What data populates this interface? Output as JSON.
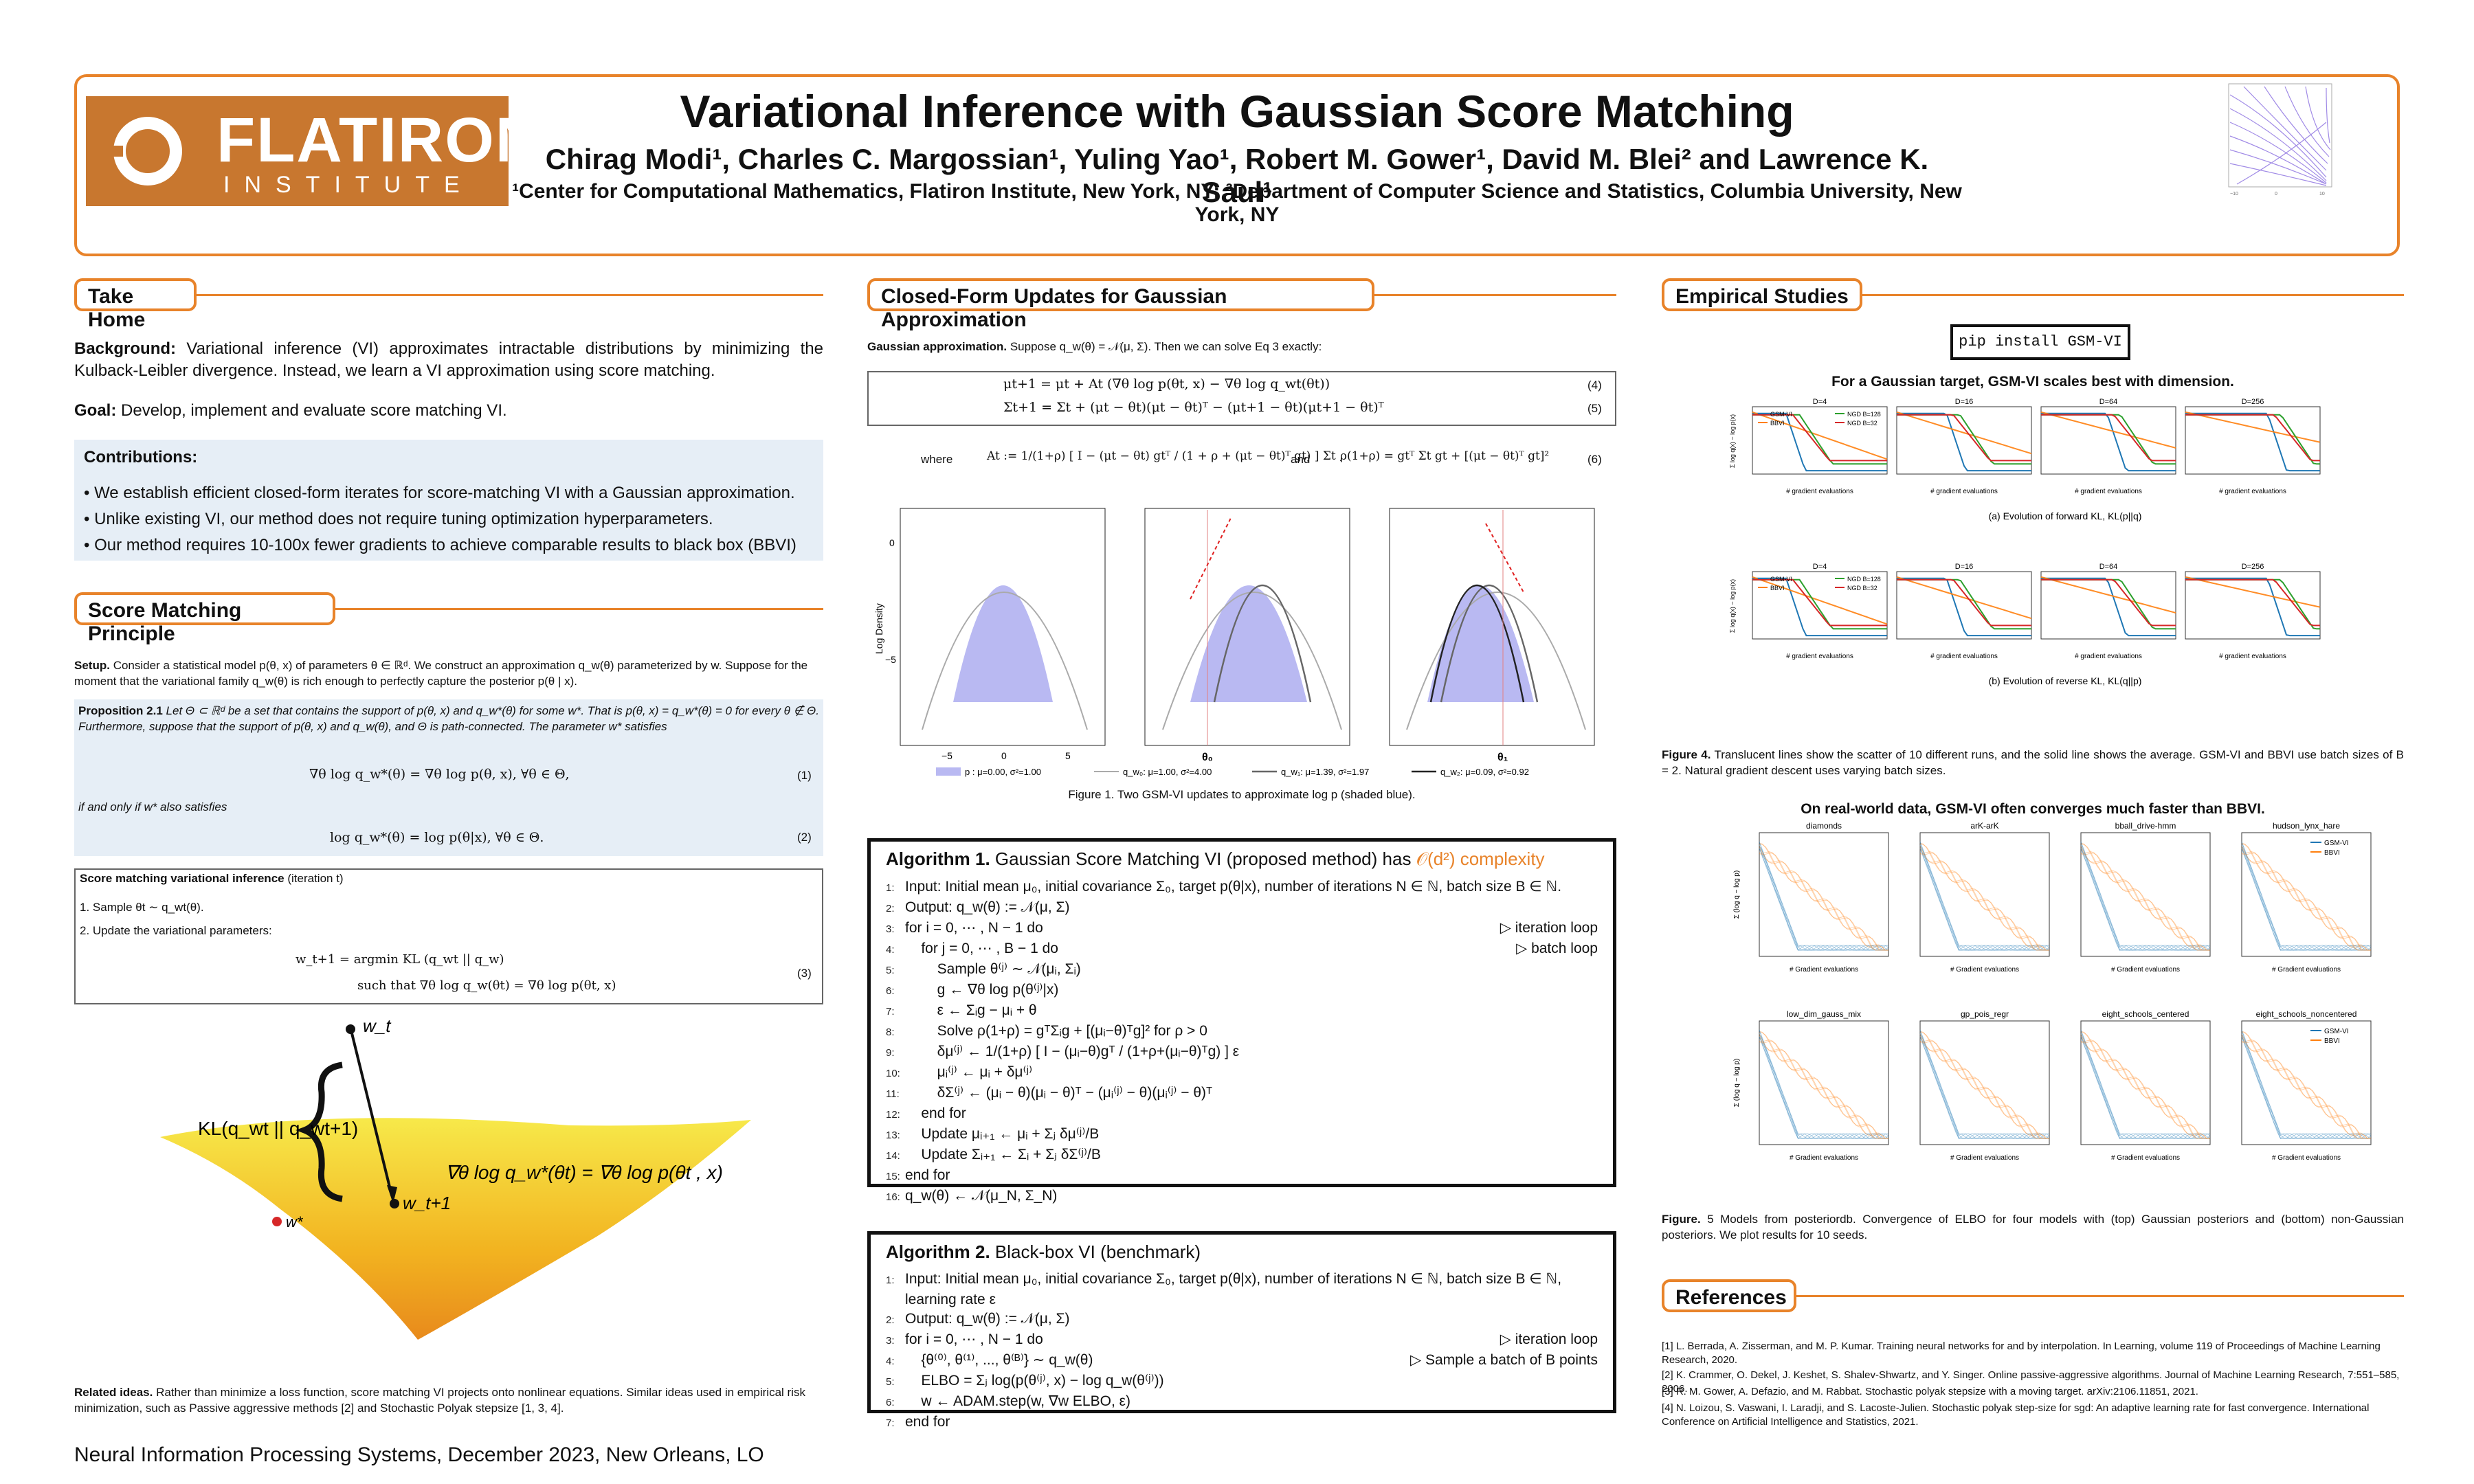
{
  "header": {
    "logo_big": "FLATIRON",
    "logo_small": "INSTITUTE",
    "title": "Variational Inference with Gaussian Score Matching",
    "authors": "Chirag Modi¹, Charles C. Margossian¹, Yuling Yao¹, Robert M. Gower¹, David M. Blei² and Lawrence K. Saul¹",
    "affiliations": "¹Center for Computational Mathematics, Flatiron Institute, New York, NY; ²Department of Computer Science and Statistics, Columbia University, New York, NY"
  },
  "take_home": {
    "title": "Take Home",
    "background_label": "Background:",
    "background": "Variational inference (VI) approximates intractable distributions by minimizing the Kulback-Leibler divergence. Instead, we learn a VI approximation using score matching.",
    "goal_label": "Goal:",
    "goal": "Develop, implement and evaluate score matching VI.",
    "contrib_title": "Contributions:",
    "contributions": [
      "We establish efficient closed-form iterates for score-matching VI with a Gaussian approximation.",
      "Unlike existing VI, our method does not require tuning optimization hyperparameters.",
      "Our method requires 10-100x fewer gradients to achieve comparable results to black box (BBVI)"
    ]
  },
  "score_matching": {
    "title": "Score Matching Principle",
    "setup_label": "Setup.",
    "setup": "Consider a statistical model p(θ, x) of parameters θ ∈ ℝᵈ. We construct an approximation q_w(θ) parameterized by w. Suppose for the moment that the variational family q_w(θ) is rich enough to perfectly capture the posterior p(θ | x).",
    "prop_label": "Proposition 2.1",
    "prop": "Let Θ ⊂ ℝᵈ be a set that contains the support of p(θ, x) and q_w*(θ) for some w*. That is p(θ, x) = q_w*(θ) = 0 for every θ ∉ Θ. Furthermore, suppose that the support of p(θ, x) and q_w(θ), and Θ is path-connected. The parameter w* satisfies",
    "eq1": "∇θ log q_w*(θ) = ∇θ log p(θ, x),     ∀θ ∈ Θ,",
    "eq1_num": "(1)",
    "iff": "if and only if w* also satisfies",
    "eq2": "log q_w*(θ) = log p(θ|x),     ∀θ ∈ Θ.",
    "eq2_num": "(2)",
    "smvi_title": "Score matching variational inference",
    "smvi_iter": "(iteration t)",
    "step1": "1. Sample θt ∼ q_wt(θ).",
    "step2": "2. Update the variational parameters:",
    "eq3a": "w_t+1 = argmin  KL (q_wt || q_w)",
    "eq3b": "such that   ∇θ log q_w(θt) = ∇θ log p(θt, x)",
    "eq3_num": "(3)",
    "fig_labels": {
      "wt": "w_t",
      "wt1": "w_t+1",
      "wstar": "w*",
      "kl": "KL(q_wt || q_wt+1)",
      "grad": "∇θ log q_w*(θt)  =  ∇θ log p(θt , x)"
    },
    "related_label": "Related ideas.",
    "related": "Rather than minimize a loss function, score matching VI projects onto nonlinear equations. Similar ideas used in empirical risk minimization, such as Passive aggressive methods [2] and Stochastic Polyak stepsize [1, 3, 4]."
  },
  "footer": "Neural Information Processing Systems, December 2023, New Orleans, LO",
  "closed_form": {
    "title": "Closed-Form Updates for Gaussian Approximation",
    "intro_label": "Gaussian approximation.",
    "intro": "Suppose q_w(θ) = 𝒩(μ, Σ). Then we can solve Eq 3 exactly:",
    "eq4": "μt+1 = μt + At (∇θ log p(θt, x) − ∇θ log q_wt(θt))",
    "eq4_num": "(4)",
    "eq5": "Σt+1 = Σt + (μt − θt)(μt − θt)ᵀ − (μt+1 − θt)(μt+1 − θt)ᵀ",
    "eq5_num": "(5)",
    "where": "where",
    "eq6a": "At := 1/(1+ρ) [ I − (μt − θt) gtᵀ / (1 + ρ + (μt − θt)ᵀ gt) ] Σt ,",
    "and": "and",
    "eq6b": "ρ(1+ρ) = gtᵀ Σt gt + [(μt − θt)ᵀ gt]²",
    "eq6_num": "(6)",
    "fig1_caption": "Figure 1. Two GSM-VI updates to approximate log p (shaded blue).",
    "fig1_ylabel": "Log Density",
    "fig1_xticks": [
      "−5",
      "0",
      "5"
    ],
    "fig1_yticks": [
      "0",
      "−5"
    ],
    "fig1_theta0": "θ₀",
    "fig1_theta1": "θ₁",
    "fig1_legend": [
      "p :  μ=0.00, σ²=1.00",
      "q_w₀: μ=1.00, σ²=4.00",
      "q_w₁: μ=1.39, σ²=1.97",
      "q_w₂: μ=0.09, σ²=0.92"
    ]
  },
  "algo1": {
    "title_bold": "Algorithm 1.",
    "title": "Gaussian Score Matching VI (proposed method) has",
    "complexity": "𝒪(d²) complexity",
    "lines": [
      {
        "n": "1:",
        "t": "Input: Initial mean μ₀, initial covariance Σ₀, target p(θ|x), number of iterations N ∈ ℕ, batch size B ∈ ℕ.",
        "c": ""
      },
      {
        "n": "2:",
        "t": "Output: q_w(θ) := 𝒩(μ, Σ)",
        "c": ""
      },
      {
        "n": "3:",
        "t": "for i = 0, ⋯ , N − 1 do",
        "c": "▷ iteration loop"
      },
      {
        "n": "4:",
        "t": "    for j = 0, ⋯ , B − 1 do",
        "c": "▷ batch loop"
      },
      {
        "n": "5:",
        "t": "        Sample θ⁽ʲ⁾ ∼ 𝒩(μᵢ, Σᵢ)",
        "c": ""
      },
      {
        "n": "6:",
        "t": "        g ← ∇θ log p(θ⁽ʲ⁾|x)",
        "c": ""
      },
      {
        "n": "7:",
        "t": "        ε ← Σᵢg − μᵢ + θ",
        "c": ""
      },
      {
        "n": "8:",
        "t": "        Solve ρ(1+ρ) = gᵀΣᵢg + [(μᵢ−θ)ᵀg]² for ρ > 0",
        "c": ""
      },
      {
        "n": "9:",
        "t": "        δμ⁽ʲ⁾ ← 1/(1+ρ) [ I − (μᵢ−θ)gᵀ / (1+ρ+(μᵢ−θ)ᵀg) ] ε",
        "c": ""
      },
      {
        "n": "10:",
        "t": "        μᵢ⁽ʲ⁾ ← μᵢ + δμ⁽ʲ⁾",
        "c": ""
      },
      {
        "n": "11:",
        "t": "        δΣ⁽ʲ⁾ ← (μᵢ − θ)(μᵢ − θ)ᵀ − (μᵢ⁽ʲ⁾ − θ)(μᵢ⁽ʲ⁾ − θ)ᵀ",
        "c": ""
      },
      {
        "n": "12:",
        "t": "    end for",
        "c": ""
      },
      {
        "n": "13:",
        "t": "    Update μᵢ₊₁ ← μᵢ + Σⱼ δμ⁽ʲ⁾/B",
        "c": ""
      },
      {
        "n": "14:",
        "t": "    Update Σᵢ₊₁ ← Σᵢ + Σⱼ δΣ⁽ʲ⁾/B",
        "c": ""
      },
      {
        "n": "15:",
        "t": "end for",
        "c": ""
      },
      {
        "n": "16:",
        "t": "q_w(θ) ← 𝒩(μ_N, Σ_N)",
        "c": ""
      }
    ]
  },
  "algo2": {
    "title_bold": "Algorithm 2.",
    "title": "Black-box VI (benchmark)",
    "lines": [
      {
        "n": "1:",
        "t": "Input: Initial mean μ₀, initial covariance Σ₀, target p(θ|x), number of iterations N ∈ ℕ, batch size B ∈ ℕ,",
        "c": ""
      },
      {
        "n": "",
        "t": "learning rate ε",
        "c": ""
      },
      {
        "n": "2:",
        "t": "Output: q_w(θ) := 𝒩(μ, Σ)",
        "c": ""
      },
      {
        "n": "3:",
        "t": "for i = 0, ⋯ , N − 1 do",
        "c": "▷ iteration loop"
      },
      {
        "n": "4:",
        "t": "    {θ⁽⁰⁾, θ⁽¹⁾, ..., θ⁽ᴮ⁾} ∼ q_w(θ)",
        "c": "▷ Sample a batch of B points"
      },
      {
        "n": "5:",
        "t": "    ELBO = Σⱼ log(p(θ⁽ʲ⁾, x) − log q_w(θ⁽ʲ⁾))",
        "c": ""
      },
      {
        "n": "6:",
        "t": "    w ← ADAM.step(w, ∇w ELBO, ε)",
        "c": ""
      },
      {
        "n": "7:",
        "t": "end for",
        "c": ""
      }
    ]
  },
  "empirical": {
    "title": "Empirical Studies",
    "pip": "pip install GSM-VI",
    "fig4_heading": "For a Gaussian target, GSM-VI scales best with dimension.",
    "dims": [
      "D=4",
      "D=16",
      "D=64",
      "D=256"
    ],
    "legend": [
      "GSM-VI",
      "BBVI",
      "NGD B=128",
      "NGD B=32"
    ],
    "xlabel": "# gradient evaluations",
    "ylabel_a": "Σ log q(x) − log p(x)",
    "ylabel_b": "Σ log q(x) − log p(x)",
    "sub_a": "(a) Evolution of forward KL, KL(p||q)",
    "sub_b": "(b) Evolution of reverse KL, KL(q||p)",
    "fig4_caption_label": "Figure 4.",
    "fig4_caption": "Translucent lines show the scatter of 10 different runs, and the solid line shows the average. GSM-VI and BBVI use batch sizes of B = 2. Natural gradient descent uses varying batch sizes.",
    "fig5_heading": "On real-world data, GSM-VI often converges much faster than BBVI.",
    "models_top": [
      "diamonds",
      "arK-arK",
      "bball_drive-hmm",
      "hudson_lynx_hare"
    ],
    "models_bottom": [
      "low_dim_gauss_mix",
      "gp_pois_regr",
      "eight_schools_centered",
      "eight_schools_noncentered"
    ],
    "fig5_xlabel": "# Gradient evaluations",
    "fig5_ylabel": "Σ (log q − log p)",
    "fig5_legend": [
      "GSM-VI",
      "BBVI"
    ],
    "fig5_caption_label": "Figure.",
    "fig5_caption": "5 Models from posteriordb. Convergence of ELBO for four models with (top) Gaussian posteriors and (bottom) non-Gaussian posteriors. We plot results for 10 seeds."
  },
  "references": {
    "title": "References",
    "items": [
      "[1] L. Berrada, A. Zisserman, and M. P. Kumar. Training neural networks for and by interpolation. In Learning, volume 119 of Proceedings of Machine Learning Research, 2020.",
      "[2] K. Crammer, O. Dekel, J. Keshet, S. Shalev-Shwartz, and Y. Singer. Online passive-aggressive algorithms. Journal of Machine Learning Research, 7:551–585, 2006.",
      "[3] R. M. Gower, A. Defazio, and M. Rabbat. Stochastic polyak stepsize with a moving target. arXiv:2106.11851, 2021.",
      "[4] N. Loizou, S. Vaswani, I. Laradji, and S. Lacoste-Julien. Stochastic polyak step-size for sgd: An adaptive learning rate for fast convergence. International Conference on Artificial Intelligence and Statistics, 2021."
    ]
  },
  "colors": {
    "accent": "#e8832a",
    "gsm": "#1f77b4",
    "bbvi": "#ff7f0e",
    "ngd128": "#2ca02c",
    "ngd32": "#d62728",
    "shade": "#b9b9f2"
  }
}
